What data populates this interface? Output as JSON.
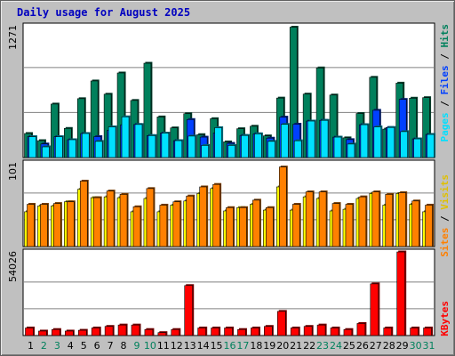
{
  "title": "Daily usage for August 2025",
  "colors": {
    "background": "#c0c0c0",
    "plot": "#ffffff",
    "hits": "#00805c",
    "files": "#0040ff",
    "pages": "#00e0ff",
    "visits": "#ffff00",
    "sites": "#ff8000",
    "kbytes": "#ff0000",
    "weekday_label": "#000000",
    "weekend_label": "#00805c"
  },
  "chart_data": [
    {
      "type": "bar",
      "panel": "hits",
      "ymax_label": "1271",
      "ylim": [
        0,
        1271
      ],
      "categories": [
        "1",
        "2",
        "3",
        "4",
        "5",
        "6",
        "7",
        "8",
        "9",
        "10",
        "11",
        "12",
        "13",
        "14",
        "15",
        "16",
        "17",
        "18",
        "19",
        "20",
        "21",
        "22",
        "23",
        "24",
        "25",
        "26",
        "27",
        "28",
        "29",
        "30",
        "31"
      ],
      "weekend_days": [
        "2",
        "3",
        "9",
        "10",
        "16",
        "17",
        "23",
        "24",
        "30",
        "31"
      ],
      "legend": [
        "Hits",
        "Files",
        "Pages"
      ],
      "series": [
        {
          "name": "Hits",
          "values": [
            232,
            163,
            516,
            281,
            568,
            739,
            611,
            816,
            551,
            910,
            392,
            286,
            423,
            221,
            375,
            151,
            278,
            302,
            209,
            574,
            1258,
            612,
            865,
            603,
            190,
            425,
            774,
            274,
            718,
            573,
            578
          ]
        },
        {
          "name": "Files",
          "values": [
            201,
            131,
            201,
            172,
            232,
            202,
            263,
            316,
            319,
            212,
            236,
            163,
            367,
            197,
            237,
            137,
            213,
            229,
            187,
            390,
            322,
            352,
            359,
            197,
            173,
            317,
            456,
            290,
            561,
            180,
            223
          ]
        },
        {
          "name": "Pages",
          "values": [
            201,
            103,
            201,
            172,
            232,
            156,
            296,
            393,
            319,
            212,
            236,
            163,
            207,
            117,
            288,
            117,
            213,
            229,
            156,
            320,
            162,
            352,
            359,
            197,
            130,
            317,
            296,
            290,
            250,
            180,
            223
          ]
        }
      ]
    },
    {
      "type": "bar",
      "panel": "sites_visits",
      "ymax_label": "101",
      "ylim": [
        0,
        101
      ],
      "categories": [
        "1",
        "2",
        "3",
        "4",
        "5",
        "6",
        "7",
        "8",
        "9",
        "10",
        "11",
        "12",
        "13",
        "14",
        "15",
        "16",
        "17",
        "18",
        "19",
        "20",
        "21",
        "22",
        "23",
        "24",
        "25",
        "26",
        "27",
        "28",
        "29",
        "30",
        "31"
      ],
      "legend": [
        "Sites",
        "Visits"
      ],
      "series": [
        {
          "name": "Visits",
          "values": [
            42,
            49,
            49,
            54,
            69,
            59,
            60,
            59,
            42,
            58,
            42,
            50,
            55,
            64,
            70,
            43,
            47,
            51,
            44,
            72,
            44,
            60,
            58,
            43,
            45,
            58,
            64,
            50,
            64,
            51,
            42
          ]
        },
        {
          "name": "Sites",
          "values": [
            51,
            51,
            52,
            54,
            79,
            59,
            67,
            63,
            48,
            70,
            50,
            54,
            61,
            72,
            75,
            47,
            47,
            56,
            47,
            96,
            51,
            66,
            66,
            52,
            51,
            60,
            66,
            63,
            65,
            55,
            50
          ]
        }
      ]
    },
    {
      "type": "bar",
      "panel": "kbytes",
      "ymax_label": "54026",
      "ylim": [
        0,
        54026
      ],
      "categories": [
        "1",
        "2",
        "3",
        "4",
        "5",
        "6",
        "7",
        "8",
        "9",
        "10",
        "11",
        "12",
        "13",
        "14",
        "15",
        "16",
        "17",
        "18",
        "19",
        "20",
        "21",
        "22",
        "23",
        "24",
        "25",
        "26",
        "27",
        "28",
        "29",
        "30",
        "31"
      ],
      "legend": [
        "KBytes"
      ],
      "series": [
        {
          "name": "KBytes",
          "values": [
            4900,
            2900,
            3900,
            2900,
            3400,
            4900,
            5900,
            6800,
            6800,
            3900,
            1900,
            3900,
            32300,
            4900,
            4900,
            4900,
            3900,
            4900,
            5900,
            15600,
            4900,
            5900,
            6800,
            4900,
            3900,
            7800,
            33400,
            4900,
            54000,
            4900,
            4900
          ]
        }
      ]
    }
  ]
}
